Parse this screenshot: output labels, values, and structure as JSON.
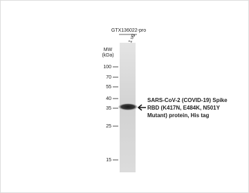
{
  "antibody": "GTX136022-pro",
  "lane_label": "1 ug",
  "mw_label": [
    "MW",
    "(kDa)"
  ],
  "markers": [
    100,
    70,
    55,
    40,
    35,
    25,
    15
  ],
  "annotation": [
    "SARS-CoV-2 (COVID-19)  Spike",
    "RBD (K417N, E484K, N501Y",
    "Mutant) protein, His tag"
  ]
}
